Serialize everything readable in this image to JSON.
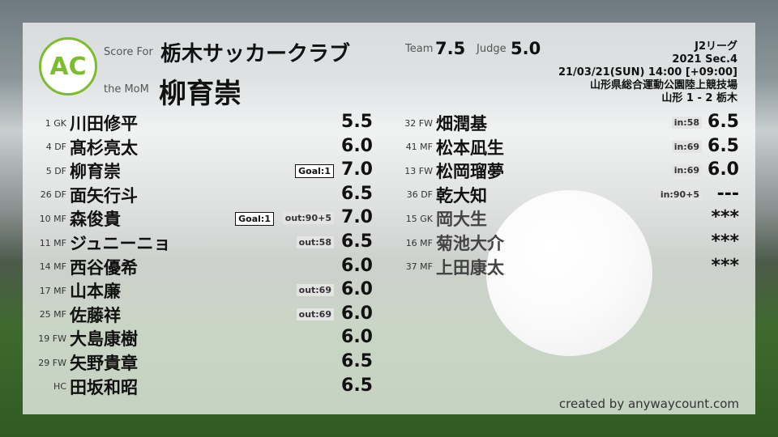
{
  "header": {
    "score_for_label": "Score For",
    "team": "栃木サッカークラブ",
    "mom_label": "the MoM",
    "mom": "柳育崇",
    "team_label": "Team",
    "team_score": "7.5",
    "judge_label": "Judge",
    "judge_score": "5.0",
    "logo_text": "AC",
    "logo_ring": "ANYWAY COUNT"
  },
  "match": {
    "league": "J2リーグ",
    "section": "2021 Sec.4",
    "datetime": "21/03/21(SUN) 14:00 [+09:00]",
    "venue": "山形県総合運動公園陸上競技場",
    "result": "山形 1 - 2 栃木"
  },
  "left_players": [
    {
      "pos": "1 GK",
      "name": "川田修平",
      "score": "5.5",
      "goal": "",
      "sub": ""
    },
    {
      "pos": "4 DF",
      "name": "髙杉亮太",
      "score": "6.0",
      "goal": "",
      "sub": ""
    },
    {
      "pos": "5 DF",
      "name": "柳育崇",
      "score": "7.0",
      "goal": "Goal:1",
      "sub": ""
    },
    {
      "pos": "26 DF",
      "name": "面矢行斗",
      "score": "6.5",
      "goal": "",
      "sub": ""
    },
    {
      "pos": "10 MF",
      "name": "森俊貴",
      "score": "7.0",
      "goal": "Goal:1",
      "sub": "out:90+5"
    },
    {
      "pos": "11 MF",
      "name": "ジュニーニョ",
      "score": "6.5",
      "goal": "",
      "sub": "out:58"
    },
    {
      "pos": "14 MF",
      "name": "西谷優希",
      "score": "6.0",
      "goal": "",
      "sub": ""
    },
    {
      "pos": "17 MF",
      "name": "山本廉",
      "score": "6.0",
      "goal": "",
      "sub": "out:69"
    },
    {
      "pos": "25 MF",
      "name": "佐藤祥",
      "score": "6.0",
      "goal": "",
      "sub": "out:69"
    },
    {
      "pos": "19 FW",
      "name": "大島康樹",
      "score": "6.0",
      "goal": "",
      "sub": ""
    },
    {
      "pos": "29 FW",
      "name": "矢野貴章",
      "score": "6.5",
      "goal": "",
      "sub": ""
    },
    {
      "pos": "HC",
      "name": "田坂和昭",
      "score": "6.5",
      "goal": "",
      "sub": ""
    }
  ],
  "right_players": [
    {
      "pos": "32 FW",
      "name": "畑潤基",
      "score": "6.5",
      "sub": "in:58"
    },
    {
      "pos": "41 MF",
      "name": "松本凪生",
      "score": "6.5",
      "sub": "in:69"
    },
    {
      "pos": "13 FW",
      "name": "松岡瑠夢",
      "score": "6.0",
      "sub": "in:69"
    },
    {
      "pos": "36 DF",
      "name": "乾大知",
      "score": "---",
      "sub": "in:90+5"
    },
    {
      "pos": "15 GK",
      "name": "岡大生",
      "score": "***",
      "sub": ""
    },
    {
      "pos": "16 MF",
      "name": "菊池大介",
      "score": "***",
      "sub": ""
    },
    {
      "pos": "37 MF",
      "name": "上田康太",
      "score": "***",
      "sub": ""
    }
  ],
  "credit": "created by anywaycount.com",
  "colors": {
    "logo": "#7dbb2f"
  }
}
